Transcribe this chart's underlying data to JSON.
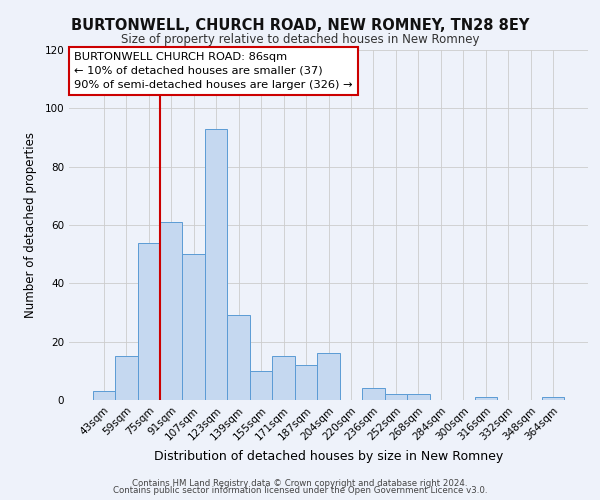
{
  "title": "BURTONWELL, CHURCH ROAD, NEW ROMNEY, TN28 8EY",
  "subtitle": "Size of property relative to detached houses in New Romney",
  "xlabel": "Distribution of detached houses by size in New Romney",
  "ylabel": "Number of detached properties",
  "bar_labels": [
    "43sqm",
    "59sqm",
    "75sqm",
    "91sqm",
    "107sqm",
    "123sqm",
    "139sqm",
    "155sqm",
    "171sqm",
    "187sqm",
    "204sqm",
    "220sqm",
    "236sqm",
    "252sqm",
    "268sqm",
    "284sqm",
    "300sqm",
    "316sqm",
    "332sqm",
    "348sqm",
    "364sqm"
  ],
  "bar_heights": [
    3,
    15,
    54,
    61,
    50,
    93,
    29,
    10,
    15,
    12,
    16,
    0,
    4,
    2,
    2,
    0,
    0,
    1,
    0,
    0,
    1
  ],
  "bar_color": "#c5d8f0",
  "bar_edge_color": "#5b9bd5",
  "ylim": [
    0,
    120
  ],
  "yticks": [
    0,
    20,
    40,
    60,
    80,
    100,
    120
  ],
  "vline_color": "#cc0000",
  "annotation_title": "BURTONWELL CHURCH ROAD: 86sqm",
  "annotation_line1": "← 10% of detached houses are smaller (37)",
  "annotation_line2": "90% of semi-detached houses are larger (326) →",
  "annotation_box_color": "#ffffff",
  "annotation_box_edge_color": "#cc0000",
  "footnote1": "Contains HM Land Registry data © Crown copyright and database right 2024.",
  "footnote2": "Contains public sector information licensed under the Open Government Licence v3.0.",
  "bg_color": "#eef2fa"
}
